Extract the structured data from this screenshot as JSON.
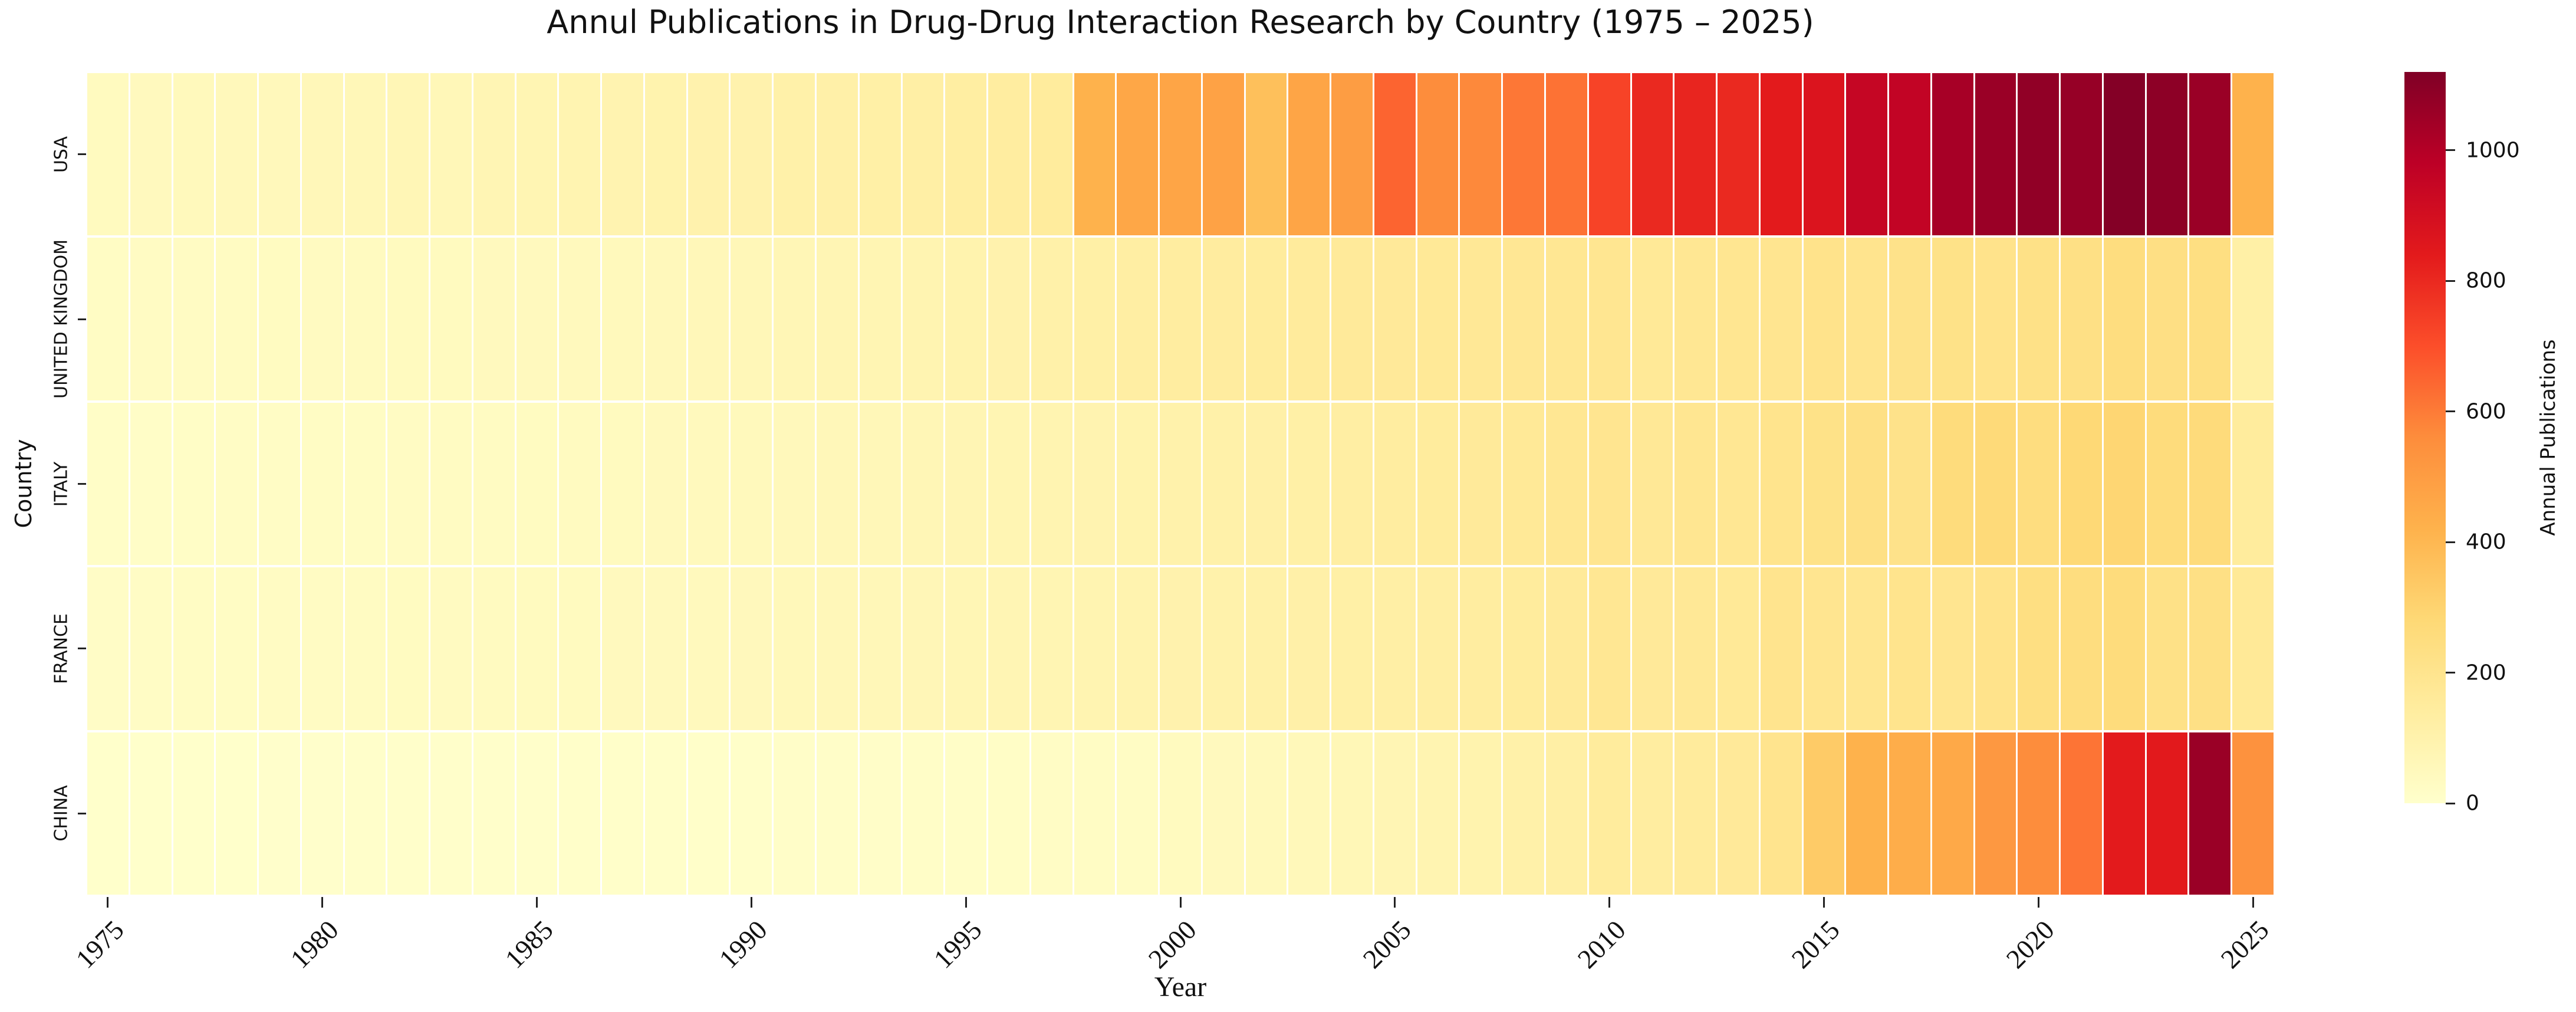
{
  "title": "Annul Publications in Drug-Drug Interaction Research by Country (1975 – 2025)",
  "xlabel": "Year",
  "ylabel": "Country",
  "colorbar": {
    "label": "Annual Publications",
    "ticks": [
      0,
      200,
      400,
      600,
      800,
      1000
    ],
    "tick_labels": [
      "0",
      "200",
      "400",
      "600",
      "800",
      "1000"
    ]
  },
  "chart_data": {
    "type": "heatmap",
    "title": "Annul Publications in Drug-Drug Interaction Research by Country (1975 – 2025)",
    "xlabel": "Year",
    "ylabel": "Country",
    "legend_label": "Annual Publications",
    "colormap": "YlOrRd",
    "colormap_stops": [
      [
        0.0,
        "#ffffcc"
      ],
      [
        0.125,
        "#ffeda0"
      ],
      [
        0.25,
        "#fed976"
      ],
      [
        0.375,
        "#feb24c"
      ],
      [
        0.5,
        "#fd8d3c"
      ],
      [
        0.625,
        "#fc4e2a"
      ],
      [
        0.75,
        "#e31a1c"
      ],
      [
        0.875,
        "#bd0026"
      ],
      [
        1.0,
        "#800026"
      ]
    ],
    "vmin": 0,
    "vmax": 1120,
    "grid": false,
    "x": [
      1975,
      1976,
      1977,
      1978,
      1979,
      1980,
      1981,
      1982,
      1983,
      1984,
      1985,
      1986,
      1987,
      1988,
      1989,
      1990,
      1991,
      1992,
      1993,
      1994,
      1995,
      1996,
      1997,
      1998,
      1999,
      2000,
      2001,
      2002,
      2003,
      2004,
      2005,
      2006,
      2007,
      2008,
      2009,
      2010,
      2011,
      2012,
      2013,
      2014,
      2015,
      2016,
      2017,
      2018,
      2019,
      2020,
      2021,
      2022,
      2023,
      2024,
      2025
    ],
    "x_ticks": [
      1975,
      1980,
      1985,
      1990,
      1995,
      2000,
      2005,
      2010,
      2015,
      2020,
      2025
    ],
    "categories": [
      "USA",
      "UNITED KINGDOM",
      "ITALY",
      "FRANCE",
      "CHINA"
    ],
    "series": [
      {
        "name": "USA",
        "values": [
          40,
          45,
          50,
          55,
          55,
          60,
          65,
          70,
          65,
          75,
          80,
          85,
          90,
          95,
          100,
          100,
          110,
          115,
          120,
          125,
          135,
          140,
          150,
          420,
          460,
          470,
          480,
          370,
          470,
          500,
          650,
          560,
          570,
          610,
          620,
          730,
          800,
          810,
          800,
          840,
          870,
          950,
          960,
          1030,
          1060,
          1080,
          1070,
          1110,
          1090,
          1060,
          420
        ]
      },
      {
        "name": "UNITED KINGDOM",
        "values": [
          25,
          28,
          30,
          32,
          34,
          36,
          38,
          40,
          42,
          44,
          46,
          48,
          50,
          55,
          60,
          65,
          70,
          75,
          80,
          85,
          95,
          100,
          110,
          120,
          130,
          140,
          145,
          150,
          155,
          160,
          165,
          170,
          175,
          180,
          185,
          190,
          170,
          185,
          190,
          195,
          210,
          200,
          215,
          220,
          210,
          225,
          230,
          250,
          235,
          240,
          120
        ]
      },
      {
        "name": "ITALY",
        "values": [
          15,
          17,
          19,
          21,
          23,
          25,
          27,
          29,
          31,
          33,
          35,
          38,
          41,
          44,
          47,
          50,
          55,
          60,
          65,
          70,
          75,
          80,
          85,
          90,
          95,
          105,
          110,
          115,
          120,
          130,
          140,
          150,
          160,
          170,
          185,
          195,
          175,
          190,
          185,
          205,
          220,
          230,
          215,
          260,
          270,
          250,
          280,
          290,
          260,
          265,
          150
        ]
      },
      {
        "name": "FRANCE",
        "values": [
          20,
          22,
          24,
          26,
          28,
          30,
          32,
          34,
          36,
          38,
          40,
          42,
          44,
          46,
          48,
          52,
          56,
          60,
          64,
          68,
          72,
          76,
          80,
          86,
          92,
          100,
          105,
          110,
          115,
          120,
          125,
          130,
          140,
          150,
          160,
          185,
          165,
          175,
          170,
          200,
          195,
          190,
          205,
          195,
          210,
          240,
          250,
          260,
          225,
          230,
          170
        ]
      },
      {
        "name": "CHINA",
        "values": [
          2,
          2,
          3,
          3,
          4,
          4,
          5,
          5,
          6,
          6,
          7,
          8,
          8,
          9,
          10,
          11,
          12,
          13,
          14,
          15,
          17,
          19,
          21,
          24,
          27,
          40,
          45,
          50,
          58,
          66,
          75,
          85,
          95,
          110,
          125,
          150,
          140,
          155,
          165,
          200,
          330,
          420,
          440,
          455,
          520,
          560,
          615,
          840,
          845,
          1060,
          540
        ]
      }
    ]
  }
}
